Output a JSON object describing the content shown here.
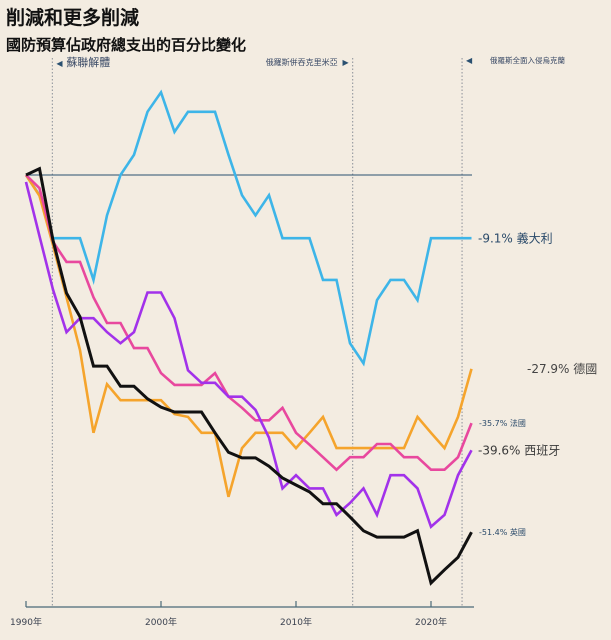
{
  "title": "削減和更多削減",
  "subtitle": "國防預算佔政府總支出的百分比變化",
  "chart_data": {
    "type": "line",
    "title": "削減和更多削減",
    "subtitle": "國防預算佔政府總支出的百分比變化",
    "xlabel": "",
    "ylabel": "",
    "x": [
      1990,
      1991,
      1992,
      1993,
      1994,
      1995,
      1996,
      1997,
      1998,
      1999,
      2000,
      2001,
      2002,
      2003,
      2004,
      2005,
      2006,
      2007,
      2008,
      2009,
      2010,
      2011,
      2012,
      2013,
      2014,
      2015,
      2016,
      2017,
      2018,
      2019,
      2020,
      2021,
      2022,
      2023
    ],
    "xlim": [
      1990,
      2023
    ],
    "ylim": [
      -62,
      17
    ],
    "x_ticks": [
      {
        "value": 1990,
        "label": "1990年"
      },
      {
        "value": 2000,
        "label": "2000年"
      },
      {
        "value": 2010,
        "label": "2010年"
      },
      {
        "value": 2020,
        "label": "2020年"
      }
    ],
    "reference_line": 0,
    "events": [
      {
        "year": 1991.95,
        "label": "蘇聯解體",
        "arrow": "◀",
        "side": "right"
      },
      {
        "year": 2014.2,
        "label": "俄羅斯併吞克里米亞",
        "arrow": "▶",
        "side": "left"
      },
      {
        "year": 2022.3,
        "label": "俄羅斯全面入侵烏克蘭",
        "arrow": "◀",
        "side": "right"
      }
    ],
    "series": [
      {
        "name": "義大利",
        "end_label": "-9.1% 義大利",
        "color": "#3db5e8",
        "values": [
          0,
          -2.9,
          -9.1,
          -9.1,
          -9.1,
          -15.1,
          -5.8,
          0,
          2.9,
          9.1,
          11.9,
          6.2,
          9.1,
          9.1,
          9.1,
          2.9,
          -2.9,
          -5.8,
          -2.9,
          -9.1,
          -9.1,
          -9.1,
          -15.1,
          -15.1,
          -24.2,
          -27.1,
          -18.0,
          -15.1,
          -15.1,
          -18.0,
          -9.1,
          -9.1,
          -9.1,
          -9.1
        ]
      },
      {
        "name": "德國",
        "end_label": "-27.9% 德國",
        "color": "#f5a42c",
        "values": [
          0,
          -3.0,
          -10.1,
          -17.6,
          -25.2,
          -37.1,
          -30.1,
          -32.4,
          -32.4,
          -32.4,
          -32.4,
          -34.4,
          -34.8,
          -37.1,
          -37.1,
          -46.3,
          -39.3,
          -37.1,
          -37.1,
          -37.1,
          -39.3,
          -37.1,
          -34.8,
          -39.3,
          -39.3,
          -39.3,
          -39.3,
          -39.3,
          -39.3,
          -34.8,
          -37.1,
          -39.3,
          -34.8,
          -27.9
        ]
      },
      {
        "name": "法國",
        "end_label": "-35.7% 法國",
        "color": "#e8489e",
        "values": [
          0,
          -1.9,
          -9.6,
          -12.5,
          -12.5,
          -17.6,
          -21.3,
          -21.3,
          -24.9,
          -24.9,
          -28.5,
          -30.2,
          -30.2,
          -30.2,
          -28.5,
          -31.9,
          -33.5,
          -35.3,
          -35.3,
          -33.5,
          -37.1,
          -38.8,
          -40.6,
          -42.4,
          -40.6,
          -40.6,
          -38.7,
          -38.7,
          -40.6,
          -40.6,
          -42.4,
          -42.4,
          -40.6,
          -35.7
        ]
      },
      {
        "name": "西班牙",
        "end_label": "-39.6% 西班牙",
        "color": "#a232ea",
        "values": [
          -1.0,
          -8.8,
          -16.5,
          -22.6,
          -20.6,
          -20.6,
          -22.6,
          -24.2,
          -22.6,
          -16.9,
          -16.9,
          -20.6,
          -28.1,
          -29.9,
          -29.9,
          -31.9,
          -31.9,
          -33.8,
          -37.8,
          -45.1,
          -43.2,
          -45.1,
          -45.1,
          -48.9,
          -47.2,
          -45.1,
          -48.9,
          -43.2,
          -43.2,
          -45.1,
          -50.6,
          -48.9,
          -43.2,
          -39.6
        ]
      },
      {
        "name": "英國",
        "end_label": "-51.4% 英國",
        "color": "#111111",
        "values": [
          0,
          0.9,
          -9.4,
          -17.0,
          -20.4,
          -27.5,
          -27.5,
          -30.4,
          -30.4,
          -32.2,
          -33.4,
          -34.1,
          -34.1,
          -34.1,
          -37.1,
          -39.9,
          -40.7,
          -40.7,
          -41.9,
          -43.6,
          -44.6,
          -45.6,
          -47.3,
          -47.3,
          -49.2,
          -51.2,
          -52.1,
          -52.1,
          -52.1,
          -51.2,
          -58.7,
          -56.8,
          -55.0,
          -51.4
        ]
      }
    ]
  }
}
